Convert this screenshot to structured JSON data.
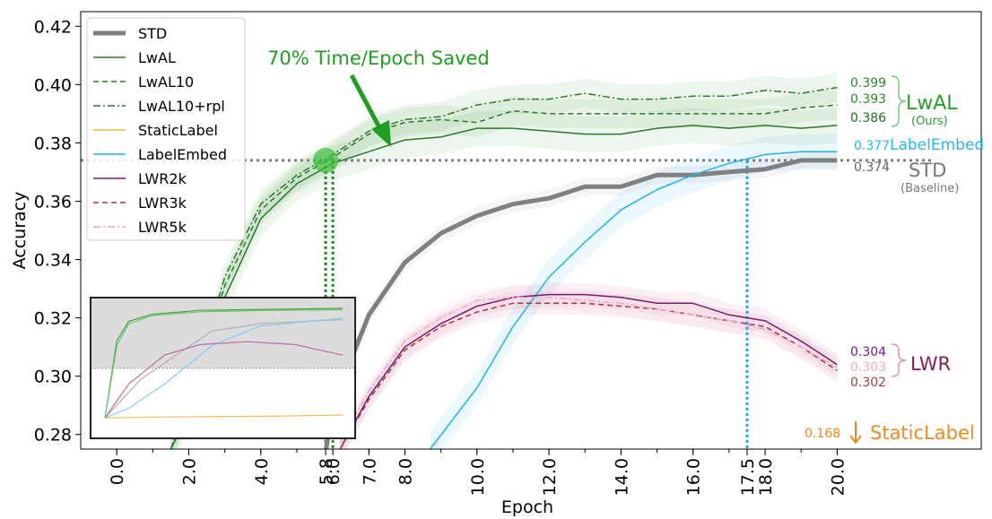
{
  "chart_data": {
    "type": "line",
    "xlabel": "Epoch",
    "ylabel": "Accuracy",
    "xlim": [
      -1.0,
      24.0
    ],
    "ylim": [
      0.275,
      0.425
    ],
    "xtick_labels": [
      "0.0",
      "2.0",
      "4.0",
      "5.8",
      "6.0",
      "7.0",
      "8.0",
      "10.0",
      "12.0",
      "14.0",
      "16.0",
      "17.5",
      "18.0",
      "20.0"
    ],
    "xtick_values": [
      0,
      2,
      4,
      5.8,
      6,
      7,
      8,
      10,
      12,
      14,
      16,
      17.5,
      18,
      20
    ],
    "ytick_values": [
      0.28,
      0.3,
      0.32,
      0.34,
      0.36,
      0.38,
      0.4,
      0.42
    ],
    "ytick_labels": [
      "0.28",
      "0.30",
      "0.32",
      "0.34",
      "0.36",
      "0.38",
      "0.40",
      "0.42"
    ],
    "grid": false,
    "legend_position": "top-left",
    "series": [
      {
        "name": "STD",
        "color": "#808080",
        "style": "solid",
        "width": 5,
        "x": [
          5.8,
          6,
          7,
          8,
          9,
          10,
          11,
          12,
          13,
          14,
          15,
          16,
          17,
          18,
          19,
          20
        ],
        "y": [
          0.274,
          0.29,
          0.321,
          0.339,
          0.349,
          0.355,
          0.359,
          0.361,
          0.365,
          0.365,
          0.369,
          0.369,
          0.37,
          0.371,
          0.374,
          0.374
        ]
      },
      {
        "name": "LwAL",
        "color": "#2a7a2a",
        "style": "solid",
        "width": 1.5,
        "x": [
          1.5,
          2,
          3,
          4,
          5,
          6,
          7,
          8,
          9,
          10,
          11,
          12,
          13,
          14,
          15,
          16,
          17,
          18,
          19,
          20
        ],
        "y": [
          0.275,
          0.287,
          0.327,
          0.354,
          0.366,
          0.373,
          0.377,
          0.381,
          0.382,
          0.385,
          0.385,
          0.384,
          0.383,
          0.383,
          0.385,
          0.386,
          0.385,
          0.386,
          0.385,
          0.386
        ]
      },
      {
        "name": "LwAL10",
        "color": "#2a7a2a",
        "style": "dashed",
        "width": 1.5,
        "x": [
          1.5,
          2,
          3,
          4,
          5,
          6,
          7,
          8,
          9,
          10,
          11,
          12,
          13,
          14,
          15,
          16,
          17,
          18,
          19,
          20
        ],
        "y": [
          0.275,
          0.29,
          0.331,
          0.357,
          0.368,
          0.375,
          0.383,
          0.387,
          0.388,
          0.387,
          0.391,
          0.39,
          0.39,
          0.39,
          0.39,
          0.39,
          0.39,
          0.39,
          0.392,
          0.393
        ]
      },
      {
        "name": "LwAL10+rpl",
        "color": "#2a7a2a",
        "style": "dashdot",
        "width": 1.5,
        "x": [
          1.5,
          2,
          3,
          4,
          5,
          6,
          7,
          8,
          9,
          10,
          11,
          12,
          13,
          14,
          15,
          16,
          17,
          18,
          19,
          20
        ],
        "y": [
          0.275,
          0.292,
          0.334,
          0.359,
          0.369,
          0.376,
          0.384,
          0.388,
          0.389,
          0.393,
          0.395,
          0.395,
          0.397,
          0.395,
          0.395,
          0.396,
          0.396,
          0.398,
          0.397,
          0.399
        ]
      },
      {
        "name": "StaticLabel",
        "color": "#f5b731",
        "style": "solid",
        "width": 1.5,
        "x": [],
        "y": []
      },
      {
        "name": "LabelEmbed",
        "color": "#1cb5f0",
        "style": "solid",
        "width": 1.5,
        "x": [
          8.7,
          10,
          11,
          12,
          13,
          14,
          15,
          16,
          17,
          18,
          19,
          20
        ],
        "y": [
          0.275,
          0.296,
          0.317,
          0.334,
          0.346,
          0.357,
          0.364,
          0.369,
          0.373,
          0.376,
          0.377,
          0.377
        ]
      },
      {
        "name": "LWR2k",
        "color": "#7b1b6e",
        "style": "solid",
        "width": 1.5,
        "x": [
          6.2,
          7,
          8,
          9,
          10,
          11,
          12,
          13,
          14,
          15,
          16,
          17,
          18,
          19,
          20
        ],
        "y": [
          0.275,
          0.293,
          0.31,
          0.318,
          0.324,
          0.327,
          0.328,
          0.328,
          0.327,
          0.325,
          0.325,
          0.321,
          0.319,
          0.312,
          0.304
        ]
      },
      {
        "name": "LWR3k",
        "color": "#b03333",
        "style": "dashed",
        "width": 1.5,
        "x": [
          6.2,
          7,
          8,
          9,
          10,
          11,
          12,
          13,
          14,
          15,
          16,
          17,
          18,
          19,
          20
        ],
        "y": [
          0.275,
          0.292,
          0.309,
          0.317,
          0.322,
          0.325,
          0.325,
          0.325,
          0.324,
          0.323,
          0.321,
          0.319,
          0.317,
          0.31,
          0.302
        ]
      },
      {
        "name": "LWR5k",
        "color": "#f0a9c8",
        "style": "dashdot",
        "width": 1.5,
        "x": [
          6.2,
          7,
          8,
          9,
          10,
          11,
          12,
          13,
          14,
          15,
          16,
          17,
          18,
          19,
          20
        ],
        "y": [
          0.277,
          0.295,
          0.312,
          0.32,
          0.326,
          0.327,
          0.327,
          0.326,
          0.325,
          0.323,
          0.321,
          0.319,
          0.316,
          0.31,
          0.303
        ]
      }
    ],
    "annotations": {
      "saved_text": "70% Time/Epoch Saved",
      "baseline_y": 0.374,
      "marker": {
        "x": 5.8,
        "y": 0.374
      },
      "vlines": [
        {
          "x": 5.8,
          "color": "#1a8a1a"
        },
        {
          "x": 6.0,
          "color": "#1a8a1a"
        },
        {
          "x": 17.5,
          "color": "#1aa3ee"
        }
      ],
      "end_values": [
        {
          "text": "0.399",
          "y": 0.399,
          "color": "#2a8a2a"
        },
        {
          "text": "0.393",
          "y": 0.393,
          "color": "#2a8a2a"
        },
        {
          "text": "0.386",
          "y": 0.386,
          "color": "#1f6e1f"
        },
        {
          "text": "0.377",
          "y": 0.377,
          "color": "#28b8f0"
        },
        {
          "text": "0.374",
          "y": 0.374,
          "color": "#666666"
        },
        {
          "text": "0.304",
          "y": 0.304,
          "color": "#7b1b6e"
        },
        {
          "text": "0.303",
          "y": 0.303,
          "color": "#f0a9c8"
        },
        {
          "text": "0.302",
          "y": 0.302,
          "color": "#a04040"
        },
        {
          "text": "0.168",
          "y": 0.279,
          "color": "#f08a1c"
        }
      ],
      "group_labels": {
        "lwal": "LwAL",
        "lwal_sub": "(Ours)",
        "labelembed": "LabelEmbed",
        "std": "STD",
        "std_sub": "(Baseline)",
        "lwr": "LWR",
        "staticlabel": "StaticLabel"
      }
    }
  }
}
